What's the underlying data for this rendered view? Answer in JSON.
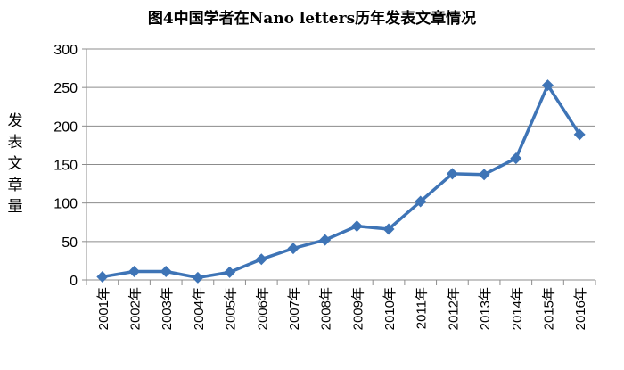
{
  "chart_data": {
    "type": "line",
    "title": "图4中国学者在Nano letters历年发表文章情况",
    "xlabel": "",
    "ylabel": "发表文章量",
    "categories": [
      "2001年",
      "2002年",
      "2003年",
      "2004年",
      "2005年",
      "2006年",
      "2007年",
      "2008年",
      "2009年",
      "2010年",
      "2011年",
      "2012年",
      "2013年",
      "2014年",
      "2015年",
      "2016年"
    ],
    "series": [
      {
        "values": [
          4,
          11,
          11,
          3,
          10,
          27,
          41,
          52,
          70,
          66,
          102,
          138,
          137,
          158,
          253,
          189
        ]
      }
    ],
    "ylim": [
      0,
      300
    ],
    "yticks": [
      0,
      50,
      100,
      150,
      200,
      250,
      300
    ],
    "grid": true,
    "legend": "none",
    "line_color": "#3E74B6",
    "grid_color": "#8C8C8C"
  }
}
